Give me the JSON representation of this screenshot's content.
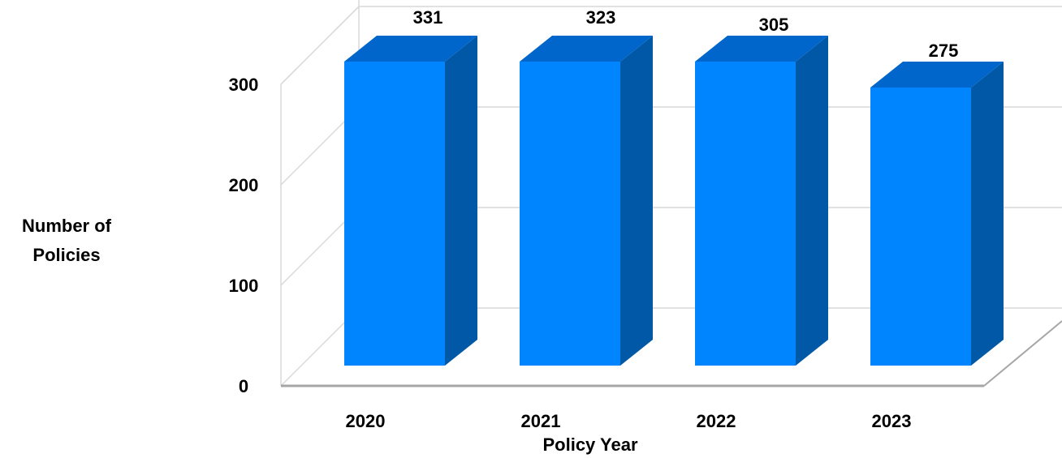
{
  "chart_data": {
    "type": "bar",
    "categories": [
      "2020",
      "2021",
      "2022",
      "2023"
    ],
    "values": [
      331,
      323,
      305,
      275
    ],
    "data_labels": [
      "331",
      "323",
      "305",
      "275"
    ],
    "xlabel": "Policy Year",
    "ylabel": "Number of Policies",
    "yticks": [
      "0",
      "100",
      "200",
      "300"
    ],
    "ylim": [
      0,
      300
    ],
    "grid": true,
    "style": "3d-column",
    "colors": {
      "front": "#0085FF",
      "side": "#0058A6",
      "top": "#0066CC",
      "grid": "#D9D9D9",
      "axis": "#A6A6A6"
    }
  }
}
